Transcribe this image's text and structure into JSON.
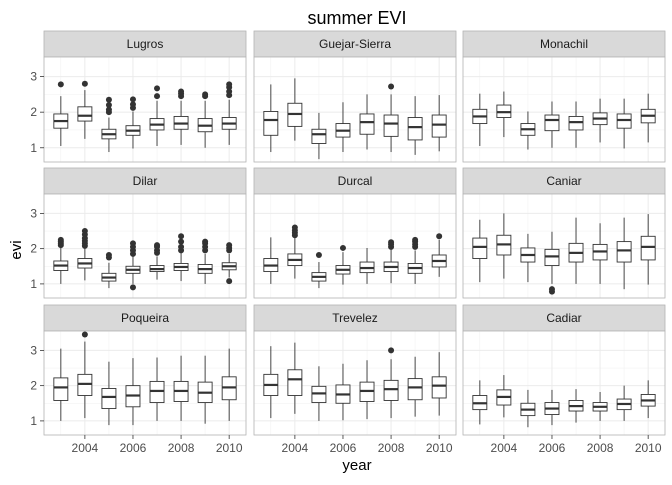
{
  "chart_data": {
    "type": "boxplot",
    "title": "summer EVI",
    "xlabel": "year",
    "ylabel": "evi",
    "x_ticks": [
      "2004",
      "2006",
      "2008",
      "2010"
    ],
    "y_ticks": [
      "1",
      "2",
      "3"
    ],
    "ylim": [
      0.6,
      3.55
    ],
    "xlim": [
      2002.3,
      2010.7
    ],
    "years": [
      2003,
      2004,
      2005,
      2006,
      2007,
      2008,
      2009,
      2010
    ],
    "layout": "3x3 facets",
    "grid": true,
    "colors": {
      "panel_border": "#b3b3b3",
      "strip_fill": "#d9d9d9",
      "grid": "#ebebeb",
      "box": "#333333"
    },
    "panels": [
      {
        "name": "Lugros",
        "boxes": [
          {
            "year": 2003,
            "min": 1.05,
            "q1": 1.55,
            "median": 1.75,
            "q3": 1.95,
            "max": 2.45,
            "outliers": [
              2.78
            ]
          },
          {
            "year": 2004,
            "min": 1.25,
            "q1": 1.75,
            "median": 1.9,
            "q3": 2.15,
            "max": 2.62,
            "outliers": [
              2.8
            ]
          },
          {
            "year": 2005,
            "min": 0.88,
            "q1": 1.25,
            "median": 1.38,
            "q3": 1.52,
            "max": 1.85,
            "outliers": [
              2.0,
              2.07,
              2.2,
              2.35
            ]
          },
          {
            "year": 2006,
            "min": 0.98,
            "q1": 1.35,
            "median": 1.48,
            "q3": 1.62,
            "max": 2.02,
            "outliers": [
              2.12,
              2.22,
              2.36
            ]
          },
          {
            "year": 2007,
            "min": 1.05,
            "q1": 1.5,
            "median": 1.65,
            "q3": 1.82,
            "max": 2.32,
            "outliers": [
              2.45,
              2.67
            ]
          },
          {
            "year": 2008,
            "min": 1.08,
            "q1": 1.52,
            "median": 1.68,
            "q3": 1.88,
            "max": 2.32,
            "outliers": [
              2.45,
              2.52,
              2.58
            ]
          },
          {
            "year": 2009,
            "min": 1.0,
            "q1": 1.45,
            "median": 1.62,
            "q3": 1.82,
            "max": 2.32,
            "outliers": [
              2.45,
              2.5
            ]
          },
          {
            "year": 2010,
            "min": 1.08,
            "q1": 1.52,
            "median": 1.68,
            "q3": 1.85,
            "max": 2.35,
            "outliers": [
              2.48,
              2.58,
              2.7,
              2.78
            ]
          }
        ]
      },
      {
        "name": "Guejar-Sierra",
        "boxes": [
          {
            "year": 2003,
            "min": 0.88,
            "q1": 1.35,
            "median": 1.78,
            "q3": 2.02,
            "max": 2.78,
            "outliers": []
          },
          {
            "year": 2004,
            "min": 1.2,
            "q1": 1.6,
            "median": 1.95,
            "q3": 2.25,
            "max": 2.95,
            "outliers": []
          },
          {
            "year": 2005,
            "min": 0.68,
            "q1": 1.12,
            "median": 1.38,
            "q3": 1.52,
            "max": 1.98,
            "outliers": []
          },
          {
            "year": 2006,
            "min": 0.88,
            "q1": 1.3,
            "median": 1.48,
            "q3": 1.68,
            "max": 2.28,
            "outliers": []
          },
          {
            "year": 2007,
            "min": 0.95,
            "q1": 1.38,
            "median": 1.72,
            "q3": 1.95,
            "max": 2.5,
            "outliers": []
          },
          {
            "year": 2008,
            "min": 0.88,
            "q1": 1.32,
            "median": 1.68,
            "q3": 1.92,
            "max": 2.5,
            "outliers": [
              2.72
            ]
          },
          {
            "year": 2009,
            "min": 0.8,
            "q1": 1.22,
            "median": 1.58,
            "q3": 1.85,
            "max": 2.45,
            "outliers": []
          },
          {
            "year": 2010,
            "min": 0.9,
            "q1": 1.3,
            "median": 1.65,
            "q3": 1.92,
            "max": 2.48,
            "outliers": []
          }
        ]
      },
      {
        "name": "Monachil",
        "boxes": [
          {
            "year": 2003,
            "min": 1.05,
            "q1": 1.68,
            "median": 1.88,
            "q3": 2.08,
            "max": 2.52,
            "outliers": []
          },
          {
            "year": 2004,
            "min": 1.3,
            "q1": 1.85,
            "median": 2.0,
            "q3": 2.2,
            "max": 2.58,
            "outliers": []
          },
          {
            "year": 2005,
            "min": 0.95,
            "q1": 1.35,
            "median": 1.52,
            "q3": 1.68,
            "max": 2.02,
            "outliers": []
          },
          {
            "year": 2006,
            "min": 1.0,
            "q1": 1.48,
            "median": 1.78,
            "q3": 1.92,
            "max": 2.3,
            "outliers": []
          },
          {
            "year": 2007,
            "min": 1.0,
            "q1": 1.5,
            "median": 1.72,
            "q3": 1.88,
            "max": 2.3,
            "outliers": []
          },
          {
            "year": 2008,
            "min": 1.15,
            "q1": 1.65,
            "median": 1.82,
            "q3": 1.98,
            "max": 2.38,
            "outliers": []
          },
          {
            "year": 2009,
            "min": 0.98,
            "q1": 1.55,
            "median": 1.78,
            "q3": 1.95,
            "max": 2.38,
            "outliers": []
          },
          {
            "year": 2010,
            "min": 1.15,
            "q1": 1.7,
            "median": 1.9,
            "q3": 2.08,
            "max": 2.52,
            "outliers": []
          }
        ]
      },
      {
        "name": "Dilar",
        "boxes": [
          {
            "year": 2003,
            "min": 1.0,
            "q1": 1.38,
            "median": 1.52,
            "q3": 1.65,
            "max": 2.02,
            "outliers": [
              2.1,
              2.15,
              2.2,
              2.25
            ]
          },
          {
            "year": 2004,
            "min": 1.1,
            "q1": 1.45,
            "median": 1.58,
            "q3": 1.72,
            "max": 2.02,
            "outliers": [
              2.08,
              2.15,
              2.22,
              2.3,
              2.4,
              2.5
            ]
          },
          {
            "year": 2005,
            "min": 0.88,
            "q1": 1.08,
            "median": 1.18,
            "q3": 1.3,
            "max": 1.6,
            "outliers": [
              1.75,
              1.82
            ]
          },
          {
            "year": 2006,
            "min": 1.0,
            "q1": 1.3,
            "median": 1.4,
            "q3": 1.5,
            "max": 1.78,
            "outliers": [
              0.9,
              1.85,
              1.95,
              2.05,
              2.15
            ]
          },
          {
            "year": 2007,
            "min": 1.12,
            "q1": 1.35,
            "median": 1.42,
            "q3": 1.52,
            "max": 1.78,
            "outliers": [
              1.88,
              1.95,
              2.05,
              2.1
            ]
          },
          {
            "year": 2008,
            "min": 1.08,
            "q1": 1.38,
            "median": 1.48,
            "q3": 1.58,
            "max": 1.88,
            "outliers": [
              1.95,
              2.05,
              2.2,
              2.35
            ]
          },
          {
            "year": 2009,
            "min": 1.0,
            "q1": 1.3,
            "median": 1.42,
            "q3": 1.55,
            "max": 1.85,
            "outliers": [
              1.95,
              2.05,
              2.15,
              2.2
            ]
          },
          {
            "year": 2010,
            "min": 1.18,
            "q1": 1.4,
            "median": 1.5,
            "q3": 1.6,
            "max": 1.85,
            "outliers": [
              1.08,
              1.95,
              2.02,
              2.1
            ]
          }
        ]
      },
      {
        "name": "Durcal",
        "boxes": [
          {
            "year": 2003,
            "min": 1.0,
            "q1": 1.35,
            "median": 1.52,
            "q3": 1.72,
            "max": 2.32,
            "outliers": []
          },
          {
            "year": 2004,
            "min": 1.15,
            "q1": 1.52,
            "median": 1.68,
            "q3": 1.85,
            "max": 2.3,
            "outliers": [
              2.38,
              2.45,
              2.52,
              2.6
            ]
          },
          {
            "year": 2005,
            "min": 0.88,
            "q1": 1.08,
            "median": 1.2,
            "q3": 1.32,
            "max": 1.62,
            "outliers": [
              1.82
            ]
          },
          {
            "year": 2006,
            "min": 0.98,
            "q1": 1.28,
            "median": 1.4,
            "q3": 1.52,
            "max": 1.9,
            "outliers": [
              2.02
            ]
          },
          {
            "year": 2007,
            "min": 1.0,
            "q1": 1.32,
            "median": 1.45,
            "q3": 1.62,
            "max": 2.02,
            "outliers": []
          },
          {
            "year": 2008,
            "min": 1.02,
            "q1": 1.35,
            "median": 1.48,
            "q3": 1.62,
            "max": 1.98,
            "outliers": [
              2.05,
              2.12,
              2.18
            ]
          },
          {
            "year": 2009,
            "min": 1.0,
            "q1": 1.3,
            "median": 1.45,
            "q3": 1.58,
            "max": 1.95,
            "outliers": [
              2.05,
              2.12,
              2.2,
              2.25
            ]
          },
          {
            "year": 2010,
            "min": 1.2,
            "q1": 1.48,
            "median": 1.65,
            "q3": 1.82,
            "max": 2.25,
            "outliers": [
              2.35
            ]
          }
        ]
      },
      {
        "name": "Caniar",
        "boxes": [
          {
            "year": 2003,
            "min": 1.05,
            "q1": 1.72,
            "median": 2.05,
            "q3": 2.3,
            "max": 2.82,
            "outliers": []
          },
          {
            "year": 2004,
            "min": 1.15,
            "q1": 1.82,
            "median": 2.12,
            "q3": 2.38,
            "max": 3.0,
            "outliers": []
          },
          {
            "year": 2005,
            "min": 1.05,
            "q1": 1.62,
            "median": 1.82,
            "q3": 2.02,
            "max": 2.42,
            "outliers": []
          },
          {
            "year": 2006,
            "min": 1.0,
            "q1": 1.52,
            "median": 1.78,
            "q3": 1.98,
            "max": 2.48,
            "outliers": [
              0.85,
              0.78
            ]
          },
          {
            "year": 2007,
            "min": 1.0,
            "q1": 1.62,
            "median": 1.88,
            "q3": 2.15,
            "max": 2.88,
            "outliers": []
          },
          {
            "year": 2008,
            "min": 1.0,
            "q1": 1.68,
            "median": 1.92,
            "q3": 2.12,
            "max": 2.72,
            "outliers": []
          },
          {
            "year": 2009,
            "min": 0.85,
            "q1": 1.62,
            "median": 1.95,
            "q3": 2.2,
            "max": 2.88,
            "outliers": []
          },
          {
            "year": 2010,
            "min": 0.98,
            "q1": 1.68,
            "median": 2.05,
            "q3": 2.35,
            "max": 2.98,
            "outliers": []
          }
        ]
      },
      {
        "name": "Poqueira",
        "boxes": [
          {
            "year": 2003,
            "min": 1.0,
            "q1": 1.58,
            "median": 1.95,
            "q3": 2.22,
            "max": 3.05,
            "outliers": []
          },
          {
            "year": 2004,
            "min": 1.08,
            "q1": 1.72,
            "median": 2.05,
            "q3": 2.32,
            "max": 3.25,
            "outliers": [
              3.45
            ]
          },
          {
            "year": 2005,
            "min": 0.88,
            "q1": 1.35,
            "median": 1.68,
            "q3": 1.92,
            "max": 2.68,
            "outliers": []
          },
          {
            "year": 2006,
            "min": 0.88,
            "q1": 1.4,
            "median": 1.72,
            "q3": 2.0,
            "max": 2.78,
            "outliers": []
          },
          {
            "year": 2007,
            "min": 1.0,
            "q1": 1.52,
            "median": 1.85,
            "q3": 2.12,
            "max": 2.8,
            "outliers": []
          },
          {
            "year": 2008,
            "min": 1.0,
            "q1": 1.55,
            "median": 1.85,
            "q3": 2.12,
            "max": 2.85,
            "outliers": []
          },
          {
            "year": 2009,
            "min": 0.92,
            "q1": 1.52,
            "median": 1.8,
            "q3": 2.1,
            "max": 2.85,
            "outliers": []
          },
          {
            "year": 2010,
            "min": 1.0,
            "q1": 1.6,
            "median": 1.95,
            "q3": 2.25,
            "max": 3.05,
            "outliers": []
          }
        ]
      },
      {
        "name": "Trevelez",
        "boxes": [
          {
            "year": 2003,
            "min": 1.08,
            "q1": 1.72,
            "median": 2.02,
            "q3": 2.32,
            "max": 3.12,
            "outliers": []
          },
          {
            "year": 2004,
            "min": 1.2,
            "q1": 1.72,
            "median": 2.18,
            "q3": 2.45,
            "max": 3.22,
            "outliers": []
          },
          {
            "year": 2005,
            "min": 1.0,
            "q1": 1.52,
            "median": 1.78,
            "q3": 1.98,
            "max": 2.55,
            "outliers": []
          },
          {
            "year": 2006,
            "min": 1.02,
            "q1": 1.5,
            "median": 1.75,
            "q3": 2.02,
            "max": 2.62,
            "outliers": []
          },
          {
            "year": 2007,
            "min": 1.05,
            "q1": 1.55,
            "median": 1.85,
            "q3": 2.1,
            "max": 2.72,
            "outliers": []
          },
          {
            "year": 2008,
            "min": 1.08,
            "q1": 1.58,
            "median": 1.9,
            "q3": 2.15,
            "max": 2.75,
            "outliers": [
              3.0
            ]
          },
          {
            "year": 2009,
            "min": 1.12,
            "q1": 1.6,
            "median": 1.95,
            "q3": 2.2,
            "max": 2.82,
            "outliers": []
          },
          {
            "year": 2010,
            "min": 1.15,
            "q1": 1.65,
            "median": 2.0,
            "q3": 2.25,
            "max": 2.95,
            "outliers": []
          }
        ]
      },
      {
        "name": "Cadiar",
        "boxes": [
          {
            "year": 2003,
            "min": 0.9,
            "q1": 1.32,
            "median": 1.5,
            "q3": 1.72,
            "max": 2.15,
            "outliers": []
          },
          {
            "year": 2004,
            "min": 1.1,
            "q1": 1.45,
            "median": 1.68,
            "q3": 1.88,
            "max": 2.3,
            "outliers": []
          },
          {
            "year": 2005,
            "min": 0.82,
            "q1": 1.15,
            "median": 1.32,
            "q3": 1.5,
            "max": 1.88,
            "outliers": []
          },
          {
            "year": 2006,
            "min": 0.88,
            "q1": 1.18,
            "median": 1.35,
            "q3": 1.52,
            "max": 1.88,
            "outliers": []
          },
          {
            "year": 2007,
            "min": 0.95,
            "q1": 1.28,
            "median": 1.42,
            "q3": 1.58,
            "max": 1.9,
            "outliers": []
          },
          {
            "year": 2008,
            "min": 1.0,
            "q1": 1.28,
            "median": 1.4,
            "q3": 1.52,
            "max": 1.82,
            "outliers": []
          },
          {
            "year": 2009,
            "min": 1.0,
            "q1": 1.32,
            "median": 1.48,
            "q3": 1.62,
            "max": 2.0,
            "outliers": []
          },
          {
            "year": 2010,
            "min": 1.08,
            "q1": 1.42,
            "median": 1.58,
            "q3": 1.75,
            "max": 2.15,
            "outliers": []
          }
        ]
      }
    ]
  }
}
